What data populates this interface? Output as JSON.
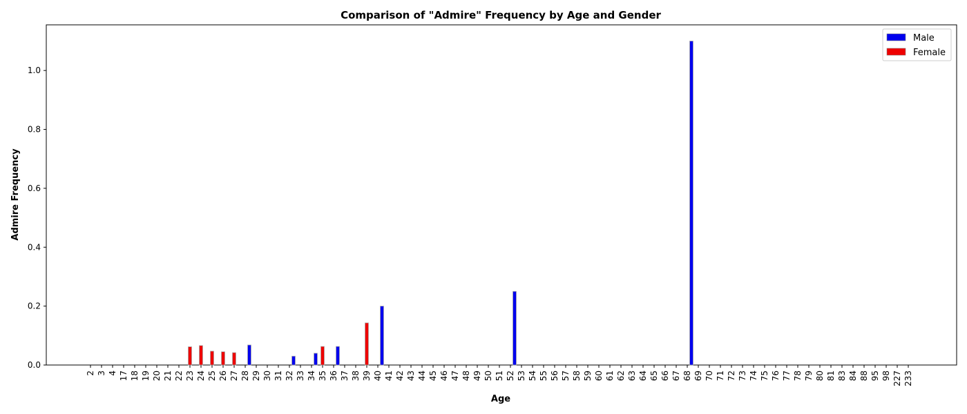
{
  "chart_data": {
    "type": "bar",
    "title": "Comparison of \"Admire\" Frequency by Age and Gender",
    "xlabel": "Age",
    "ylabel": "Admire Frequency",
    "ylim": [
      0,
      1.155
    ],
    "yticks": [
      "0.0",
      "0.2",
      "0.4",
      "0.6",
      "0.8",
      "1.0"
    ],
    "categories": [
      "2",
      "3",
      "4",
      "17",
      "18",
      "19",
      "20",
      "21",
      "22",
      "23",
      "24",
      "25",
      "26",
      "27",
      "28",
      "29",
      "30",
      "31",
      "32",
      "33",
      "34",
      "35",
      "36",
      "37",
      "38",
      "39",
      "40",
      "41",
      "42",
      "43",
      "44",
      "45",
      "46",
      "47",
      "48",
      "49",
      "50",
      "51",
      "52",
      "53",
      "54",
      "55",
      "56",
      "57",
      "58",
      "59",
      "60",
      "61",
      "62",
      "63",
      "64",
      "65",
      "66",
      "67",
      "68",
      "69",
      "70",
      "71",
      "72",
      "73",
      "74",
      "75",
      "76",
      "77",
      "78",
      "79",
      "80",
      "81",
      "83",
      "84",
      "88",
      "95",
      "98",
      "227",
      "233"
    ],
    "series": [
      {
        "name": "Male",
        "color": "#0000ee",
        "values": [
          0,
          0,
          0,
          0,
          0,
          0,
          0,
          0,
          0,
          0,
          0,
          0,
          0,
          0,
          0.068,
          0,
          0,
          0,
          0.03,
          0,
          0.04,
          0,
          0.063,
          0,
          0,
          0,
          0.2,
          0,
          0,
          0,
          0,
          0,
          0,
          0,
          0,
          0,
          0,
          0,
          0.25,
          0,
          0,
          0,
          0,
          0,
          0,
          0,
          0,
          0,
          0,
          0,
          0,
          0,
          0,
          0,
          1.1,
          0,
          0,
          0,
          0,
          0,
          0,
          0,
          0,
          0,
          0,
          0,
          0,
          0,
          0,
          0,
          0,
          0,
          0,
          0,
          0
        ]
      },
      {
        "name": "Female",
        "color": "#ee0000",
        "values": [
          0,
          0,
          0,
          0,
          0,
          0,
          0,
          0,
          0,
          0.062,
          0.066,
          0.047,
          0.045,
          0.042,
          0,
          0,
          0,
          0,
          0,
          0,
          0,
          0.063,
          0,
          0,
          0,
          0.143,
          0,
          0,
          0,
          0,
          0,
          0,
          0,
          0,
          0,
          0,
          0,
          0,
          0,
          0,
          0,
          0,
          0,
          0,
          0,
          0,
          0,
          0,
          0,
          0,
          0,
          0,
          0,
          0,
          0,
          0,
          0,
          0,
          0,
          0,
          0,
          0,
          0,
          0,
          0,
          0,
          0,
          0,
          0,
          0,
          0,
          0,
          0,
          0,
          0
        ]
      }
    ],
    "legend": "top-right",
    "grid": false
  }
}
